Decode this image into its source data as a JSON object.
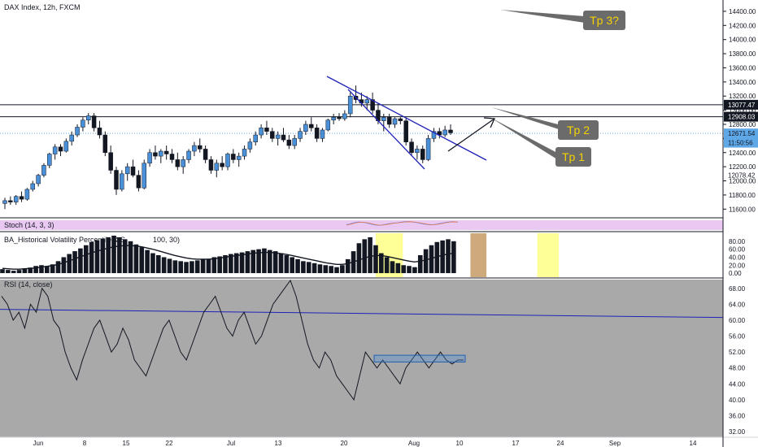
{
  "chart_title": "DAX Index, 12h, FXCM",
  "chart_data": [
    {
      "type": "candlestick",
      "title": "DAX Index, 12h, FXCM",
      "y_ticks": [
        11600,
        11800,
        12000,
        12200,
        12400,
        12600,
        12800,
        13000,
        13200,
        13400,
        13600,
        13800,
        14000,
        14200,
        14400
      ],
      "y_tick_labels": [
        "11600.00",
        "11800.00",
        "12000.00",
        "12200.00",
        "12400.00",
        "12600.00",
        "12800.00",
        "13000.00",
        "13200.00",
        "13400.00",
        "13600.00",
        "13800.00",
        "14000.00",
        "14200.00",
        "14400.00"
      ],
      "ylim": [
        11500,
        14560
      ],
      "price_tags": [
        {
          "value": 13077.47,
          "label": "13077.47",
          "style": "dark"
        },
        {
          "value": 12908.03,
          "label": "12908.03",
          "style": "dark"
        },
        {
          "value": 12671.54,
          "label": "12671.54",
          "style": "blue"
        },
        {
          "value": 12540,
          "label": "11:50:56",
          "style": "blue"
        },
        {
          "value": 12078.42,
          "label": "12078.42",
          "style": "plain"
        }
      ],
      "candles_ohlc": [
        [
          11680,
          11760,
          11600,
          11720
        ],
        [
          11720,
          11780,
          11660,
          11700
        ],
        [
          11700,
          11800,
          11660,
          11780
        ],
        [
          11780,
          11850,
          11700,
          11740
        ],
        [
          11740,
          11900,
          11720,
          11880
        ],
        [
          11880,
          12000,
          11850,
          11960
        ],
        [
          11960,
          12100,
          11920,
          12080
        ],
        [
          12080,
          12250,
          12050,
          12220
        ],
        [
          12220,
          12400,
          12180,
          12380
        ],
        [
          12380,
          12520,
          12300,
          12480
        ],
        [
          12480,
          12520,
          12350,
          12420
        ],
        [
          12420,
          12600,
          12400,
          12560
        ],
        [
          12560,
          12700,
          12500,
          12650
        ],
        [
          12650,
          12800,
          12620,
          12760
        ],
        [
          12760,
          12900,
          12700,
          12860
        ],
        [
          12860,
          12960,
          12800,
          12920
        ],
        [
          12920,
          12960,
          12700,
          12750
        ],
        [
          12750,
          12850,
          12600,
          12650
        ],
        [
          12650,
          12700,
          12350,
          12400
        ],
        [
          12400,
          12500,
          12100,
          12150
        ],
        [
          12150,
          12200,
          11800,
          11880
        ],
        [
          11880,
          12150,
          11850,
          12100
        ],
        [
          12100,
          12250,
          12000,
          12200
        ],
        [
          12200,
          12300,
          12050,
          12080
        ],
        [
          12080,
          12150,
          11850,
          11900
        ],
        [
          11900,
          12300,
          11880,
          12250
        ],
        [
          12250,
          12450,
          12200,
          12400
        ],
        [
          12400,
          12500,
          12300,
          12350
        ],
        [
          12350,
          12450,
          12250,
          12420
        ],
        [
          12420,
          12500,
          12300,
          12380
        ],
        [
          12380,
          12450,
          12250,
          12300
        ],
        [
          12300,
          12400,
          12150,
          12200
        ],
        [
          12200,
          12350,
          12100,
          12300
        ],
        [
          12300,
          12450,
          12250,
          12420
        ],
        [
          12420,
          12550,
          12350,
          12500
        ],
        [
          12500,
          12600,
          12400,
          12450
        ],
        [
          12450,
          12500,
          12250,
          12300
        ],
        [
          12300,
          12350,
          12100,
          12150
        ],
        [
          12150,
          12300,
          12050,
          12250
        ],
        [
          12250,
          12350,
          12150,
          12200
        ],
        [
          12200,
          12400,
          12150,
          12380
        ],
        [
          12380,
          12450,
          12250,
          12300
        ],
        [
          12300,
          12400,
          12200,
          12350
        ],
        [
          12350,
          12500,
          12300,
          12450
        ],
        [
          12450,
          12600,
          12400,
          12550
        ],
        [
          12550,
          12700,
          12500,
          12650
        ],
        [
          12650,
          12800,
          12600,
          12750
        ],
        [
          12750,
          12850,
          12650,
          12700
        ],
        [
          12700,
          12750,
          12550,
          12600
        ],
        [
          12600,
          12700,
          12500,
          12650
        ],
        [
          12650,
          12750,
          12550,
          12580
        ],
        [
          12580,
          12650,
          12450,
          12500
        ],
        [
          12500,
          12650,
          12450,
          12600
        ],
        [
          12600,
          12750,
          12550,
          12700
        ],
        [
          12700,
          12850,
          12650,
          12800
        ],
        [
          12800,
          12900,
          12700,
          12750
        ],
        [
          12750,
          12800,
          12550,
          12600
        ],
        [
          12600,
          12750,
          12550,
          12720
        ],
        [
          12720,
          12880,
          12700,
          12860
        ],
        [
          12860,
          12950,
          12800,
          12900
        ],
        [
          12900,
          12960,
          12850,
          12880
        ],
        [
          12880,
          13000,
          12850,
          12950
        ],
        [
          12950,
          13250,
          12900,
          13200
        ],
        [
          13200,
          13350,
          13100,
          13150
        ],
        [
          13150,
          13250,
          13050,
          13100
        ],
        [
          13100,
          13200,
          13000,
          13150
        ],
        [
          13150,
          13250,
          12950,
          13000
        ],
        [
          13000,
          13100,
          12800,
          12850
        ],
        [
          12850,
          12950,
          12700,
          12900
        ],
        [
          12900,
          12950,
          12750,
          12800
        ],
        [
          12800,
          12900,
          12750,
          12880
        ],
        [
          12880,
          12900,
          12800,
          12850
        ],
        [
          12850,
          12900,
          12500,
          12550
        ],
        [
          12550,
          12600,
          12350,
          12400
        ],
        [
          12400,
          12500,
          12300,
          12450
        ],
        [
          12450,
          12500,
          12250,
          12300
        ],
        [
          12300,
          12650,
          12280,
          12600
        ],
        [
          12600,
          12750,
          12550,
          12700
        ],
        [
          12700,
          12750,
          12600,
          12650
        ],
        [
          12650,
          12780,
          12620,
          12720
        ],
        [
          12720,
          12800,
          12650,
          12680
        ]
      ],
      "annotations": [
        "Tp 1",
        "Tp 2",
        "Tp 3?"
      ]
    },
    {
      "type": "line",
      "title": "Stoch (14, 3, 3)",
      "series": [
        {
          "values": [
            55,
            60,
            70,
            78,
            82,
            80,
            76,
            70,
            62,
            55,
            50,
            48,
            52,
            58,
            64,
            68,
            72,
            75,
            80,
            84,
            86,
            85,
            82,
            78,
            72,
            66,
            60,
            56,
            52,
            55,
            60,
            66,
            72,
            78,
            82,
            85,
            84,
            80
          ]
        },
        {
          "values": [
            50,
            56,
            64,
            72,
            78,
            80,
            78,
            74,
            68,
            60,
            54,
            50,
            50,
            54,
            60,
            65,
            70,
            73,
            77,
            81,
            84,
            85,
            84,
            80,
            76,
            70,
            64,
            59,
            55,
            54,
            57,
            62,
            68,
            74,
            79,
            83,
            84,
            82
          ]
        }
      ]
    },
    {
      "type": "bar",
      "title": "BA_Historical Volatility Percentile & S",
      "title_suffix": "100, 30)",
      "y_ticks": [
        0,
        20,
        40,
        60,
        80
      ],
      "y_tick_labels": [
        "0.00",
        "20.00",
        "40.00",
        "60.00",
        "80.00"
      ],
      "ylim": [
        -8,
        100
      ],
      "values": [
        10,
        8,
        6,
        8,
        12,
        14,
        18,
        20,
        18,
        22,
        30,
        40,
        48,
        55,
        62,
        70,
        78,
        82,
        86,
        90,
        94,
        90,
        85,
        80,
        72,
        65,
        58,
        50,
        45,
        40,
        36,
        32,
        30,
        28,
        30,
        32,
        34,
        36,
        40,
        42,
        45,
        48,
        50,
        52,
        55,
        58,
        60,
        62,
        58,
        55,
        50,
        45,
        40,
        35,
        30,
        28,
        25,
        22,
        20,
        18,
        15,
        20,
        35,
        55,
        75,
        85,
        90,
        70,
        50,
        40,
        30,
        25,
        20,
        18,
        15,
        45,
        60,
        70,
        78,
        82,
        85,
        80
      ],
      "ma_values": [
        12,
        11,
        10,
        10,
        11,
        12,
        13,
        15,
        17,
        19,
        22,
        26,
        31,
        36,
        41,
        46,
        51,
        55,
        59,
        63,
        66,
        68,
        69,
        69,
        68,
        66,
        63,
        60,
        56,
        52,
        48,
        44,
        41,
        38,
        36,
        35,
        35,
        35,
        36,
        38,
        40,
        42,
        44,
        46,
        48,
        50,
        51,
        52,
        52,
        51,
        49,
        47,
        44,
        41,
        38,
        35,
        32,
        29,
        26,
        24,
        22,
        22,
        24,
        28,
        33,
        38,
        42,
        44,
        44,
        42,
        39,
        36,
        33,
        30,
        28,
        30,
        33,
        37,
        41,
        45,
        48,
        50
      ],
      "highlight_bands": [
        {
          "start": 67,
          "end": 71,
          "color": "#ffff8c"
        },
        {
          "start": 84,
          "end": 86,
          "color": "#c8a06e"
        },
        {
          "start": 96,
          "end": 99,
          "color": "#ffff8c"
        }
      ]
    },
    {
      "type": "line",
      "title": "RSI (14, close)",
      "y_ticks": [
        32,
        36,
        40,
        44,
        48,
        52,
        56,
        60,
        64,
        68
      ],
      "y_tick_labels": [
        "32.00",
        "36.00",
        "40.00",
        "44.00",
        "48.00",
        "52.00",
        "56.00",
        "60.00",
        "64.00",
        "68.00"
      ],
      "ylim": [
        31,
        70
      ],
      "series": [
        {
          "values": [
            66,
            64,
            60,
            62,
            58,
            64,
            62,
            68,
            66,
            60,
            58,
            52,
            48,
            45,
            50,
            54,
            58,
            60,
            56,
            52,
            54,
            58,
            55,
            50,
            48,
            46,
            50,
            54,
            58,
            60,
            56,
            52,
            50,
            54,
            58,
            62,
            64,
            66,
            62,
            58,
            56,
            60,
            62,
            58,
            54,
            56,
            60,
            64,
            66,
            68,
            70,
            66,
            60,
            54,
            50,
            48,
            52,
            50,
            46,
            44,
            42,
            40,
            46,
            52,
            50,
            48,
            50,
            48,
            46,
            44,
            48,
            50,
            52,
            50,
            48,
            50,
            52,
            50,
            49,
            50,
            50
          ]
        }
      ],
      "reference_level": 61.5,
      "box": {
        "y_min": 49.5,
        "y_max": 51.2
      }
    }
  ],
  "x_ticks": [
    {
      "label": "Jun"
    },
    {
      "label": "8"
    },
    {
      "label": "15"
    },
    {
      "label": "22"
    },
    {
      "label": "Jul"
    },
    {
      "label": "13"
    },
    {
      "label": "20"
    },
    {
      "label": "Aug"
    },
    {
      "label": "10"
    },
    {
      "label": "17"
    },
    {
      "label": "24"
    },
    {
      "label": "Sep"
    },
    {
      "label": "14"
    }
  ],
  "colors": {
    "candle_up": "#4a90d9",
    "candle_down": "#131722",
    "trend_line": "#1f22b8",
    "rsi_panel_bg": "#a9a9a9",
    "stoch_band": "#e9c8f1",
    "tp_bubble": "#6b6b6b",
    "tp_text": "#f5d300",
    "tag_blue": "#5fa8e8"
  }
}
